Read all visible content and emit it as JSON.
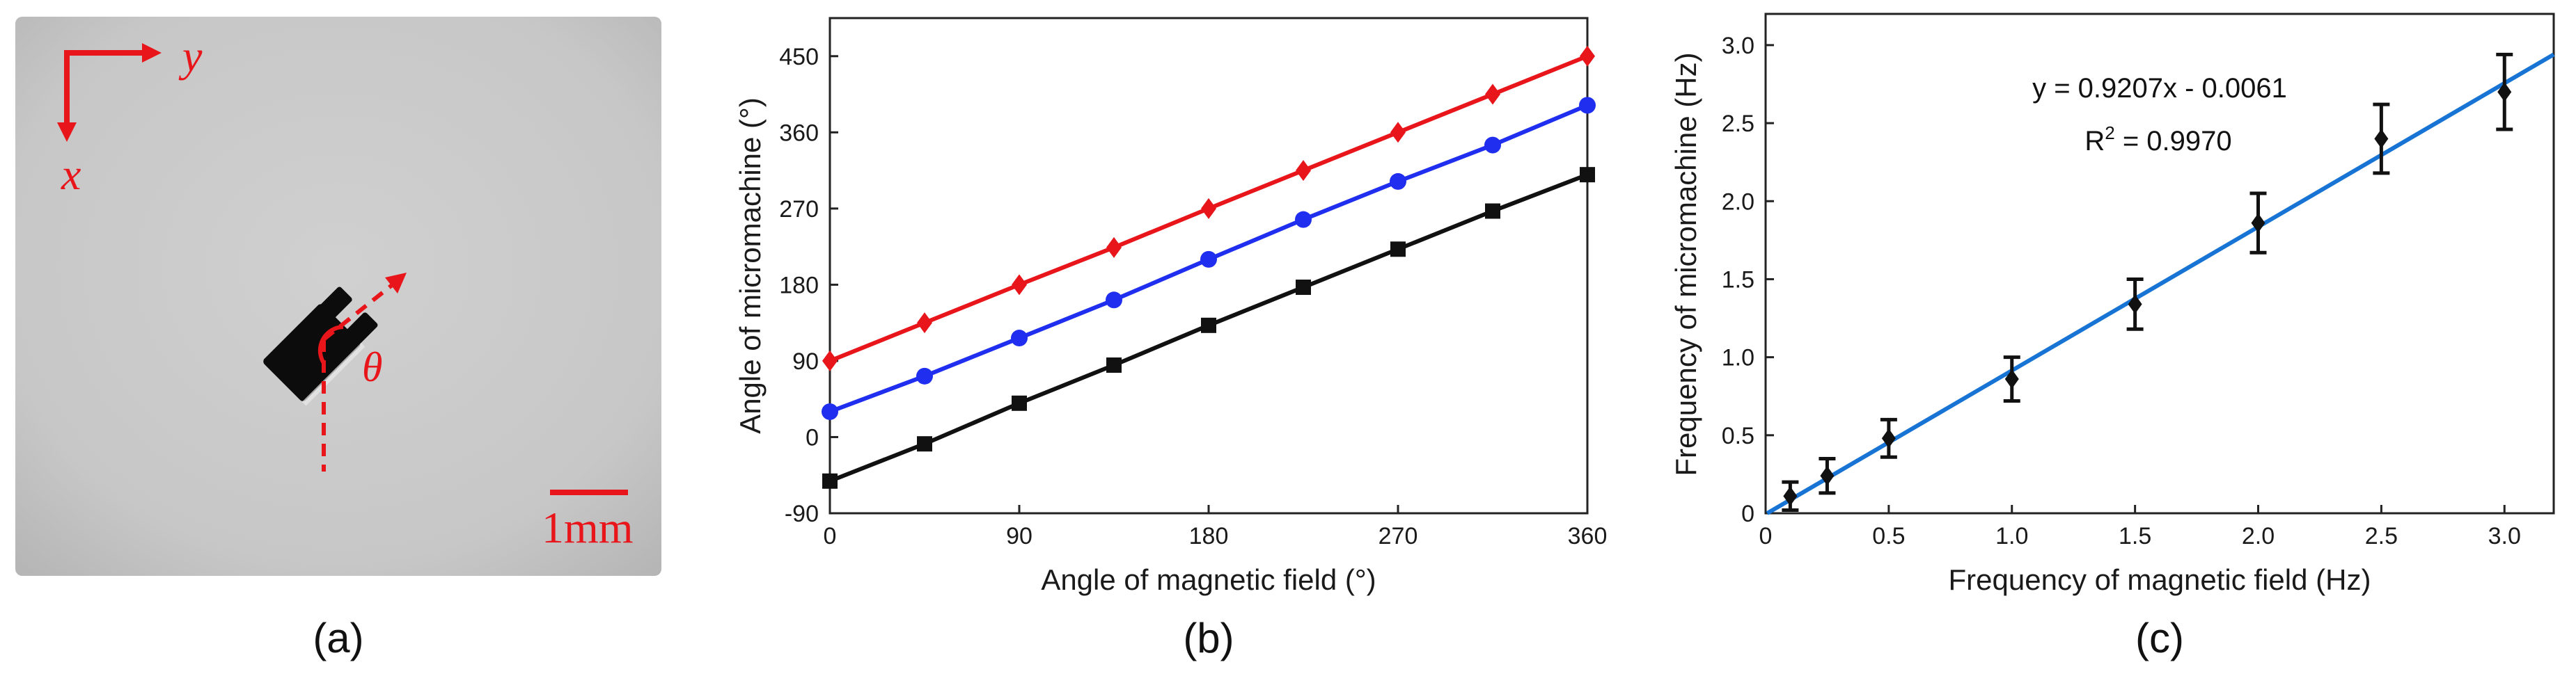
{
  "colors": {
    "red": "#e8151b",
    "blue": "#1f2eef",
    "black": "#111111",
    "fit_line": "#1874d4",
    "photo_bg": "#c9c9c9"
  },
  "panel_a": {
    "caption": "(a)",
    "axis_x_label": "x",
    "axis_y_label": "y",
    "angle_label": "θ",
    "scale_bar_label": "1mm"
  },
  "panel_b": {
    "caption": "(b)"
  },
  "panel_c": {
    "caption": "(c)",
    "equation": "y = 0.9207x - 0.0061",
    "r2_prefix": "R",
    "r2_exponent": "2",
    "r2_value": " = 0.9970"
  },
  "chart_data": [
    {
      "type": "line",
      "panel": "(b)",
      "xlabel": "Angle of magnetic field (°)",
      "ylabel": "Angle of micromachine (°)",
      "xlim": [
        0,
        360
      ],
      "ylim": [
        -90,
        495
      ],
      "xticks": [
        0,
        90,
        180,
        270,
        360
      ],
      "yticks": [
        -90,
        0,
        90,
        180,
        270,
        360,
        450
      ],
      "x": [
        0,
        45,
        90,
        135,
        180,
        225,
        270,
        315,
        360
      ],
      "series": [
        {
          "name": "red diamonds",
          "color": "#e8151b",
          "marker": "diamond",
          "values": [
            90,
            135,
            180,
            224,
            270,
            315,
            360,
            405,
            450
          ]
        },
        {
          "name": "blue circles",
          "color": "#1f2eef",
          "marker": "circle",
          "values": [
            30,
            72,
            117,
            162,
            210,
            257,
            302,
            345,
            392
          ]
        },
        {
          "name": "black squares",
          "color": "#111111",
          "marker": "square",
          "values": [
            -52,
            -8,
            40,
            85,
            132,
            177,
            222,
            267,
            310
          ]
        }
      ]
    },
    {
      "type": "scatter",
      "panel": "(c)",
      "xlabel": "Frequency of magnetic field (Hz)",
      "ylabel": "Frequency of micromachine (Hz)",
      "xlim": [
        0,
        3.2
      ],
      "ylim": [
        0,
        3.2
      ],
      "xticks": [
        0,
        0.5,
        1.0,
        1.5,
        2.0,
        2.5,
        3.0
      ],
      "yticks": [
        0,
        0.5,
        1.0,
        1.5,
        2.0,
        2.5,
        3.0
      ],
      "xtick_labels": [
        "0",
        "0.5",
        "1.0",
        "1.5",
        "2.0",
        "2.5",
        "3.0"
      ],
      "ytick_labels": [
        "0",
        "0.5",
        "1.0",
        "1.5",
        "2.0",
        "2.5",
        "3.0"
      ],
      "x": [
        0.1,
        0.25,
        0.5,
        1.0,
        1.5,
        2.0,
        2.5,
        3.0
      ],
      "y": [
        0.11,
        0.24,
        0.48,
        0.86,
        1.34,
        1.86,
        2.4,
        2.7
      ],
      "error": [
        0.09,
        0.11,
        0.12,
        0.14,
        0.16,
        0.19,
        0.22,
        0.24
      ],
      "fit": {
        "slope": 0.9207,
        "intercept": -0.0061,
        "x_range": [
          0.0066,
          3.2
        ]
      }
    }
  ]
}
